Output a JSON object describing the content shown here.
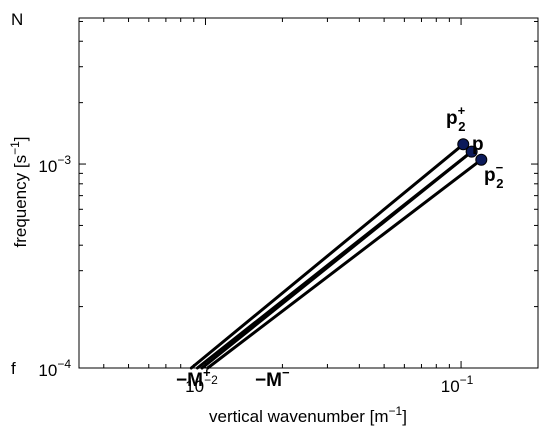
{
  "chart_data": {
    "type": "line",
    "xlabel": "vertical wavenumber [m",
    "xlabel_exp": "−1",
    "xlabel_tail": "]",
    "ylabel": "frequency [s",
    "ylabel_exp": "−1",
    "ylabel_tail": "]",
    "x_scale": "log",
    "y_scale": "log",
    "xlim": [
      0.0032,
      0.2
    ],
    "ylim": [
      0.0001,
      0.0052
    ],
    "grid": false,
    "x_ticks": [
      {
        "value": 0.01,
        "base": "10",
        "exp": "−2"
      },
      {
        "value": 0.1,
        "base": "10",
        "exp": "−1"
      }
    ],
    "y_ticks": [
      {
        "value": 0.0001,
        "base": "10",
        "exp": "−4"
      },
      {
        "value": 0.001,
        "base": "10",
        "exp": "−3"
      }
    ],
    "y_text_labels": [
      {
        "value": 0.0052,
        "text": "N"
      },
      {
        "value": 0.0001,
        "text": "f"
      }
    ],
    "marker_color": "#0b1a5a",
    "line_color": "#000000",
    "series": [
      {
        "points": [
          {
            "x": 0.0088,
            "y": 0.0001
          },
          {
            "x": 0.102,
            "y": 0.00125
          }
        ]
      },
      {
        "points": [
          {
            "x": 0.0093,
            "y": 0.0001
          },
          {
            "x": 0.11,
            "y": 0.00115
          }
        ]
      },
      {
        "points": [
          {
            "x": 0.0097,
            "y": 0.0001
          },
          {
            "x": 0.11,
            "y": 0.00115
          }
        ]
      },
      {
        "points": [
          {
            "x": 0.0102,
            "y": 0.0001
          },
          {
            "x": 0.12,
            "y": 0.00105
          }
        ]
      }
    ],
    "markers": [
      {
        "x": 0.102,
        "y": 0.00125
      },
      {
        "x": 0.11,
        "y": 0.00115
      },
      {
        "x": 0.12,
        "y": 0.00105
      }
    ],
    "annotations": {
      "p2plus": {
        "base": "p",
        "sub": "2",
        "sup": "+"
      },
      "p": {
        "base": "p"
      },
      "p2minus": {
        "base": "p",
        "sub": "2",
        "sup": "−"
      },
      "mplus": {
        "base": "−M",
        "sup": "+"
      },
      "mminus": {
        "base": "−M",
        "sup": "−"
      }
    }
  }
}
